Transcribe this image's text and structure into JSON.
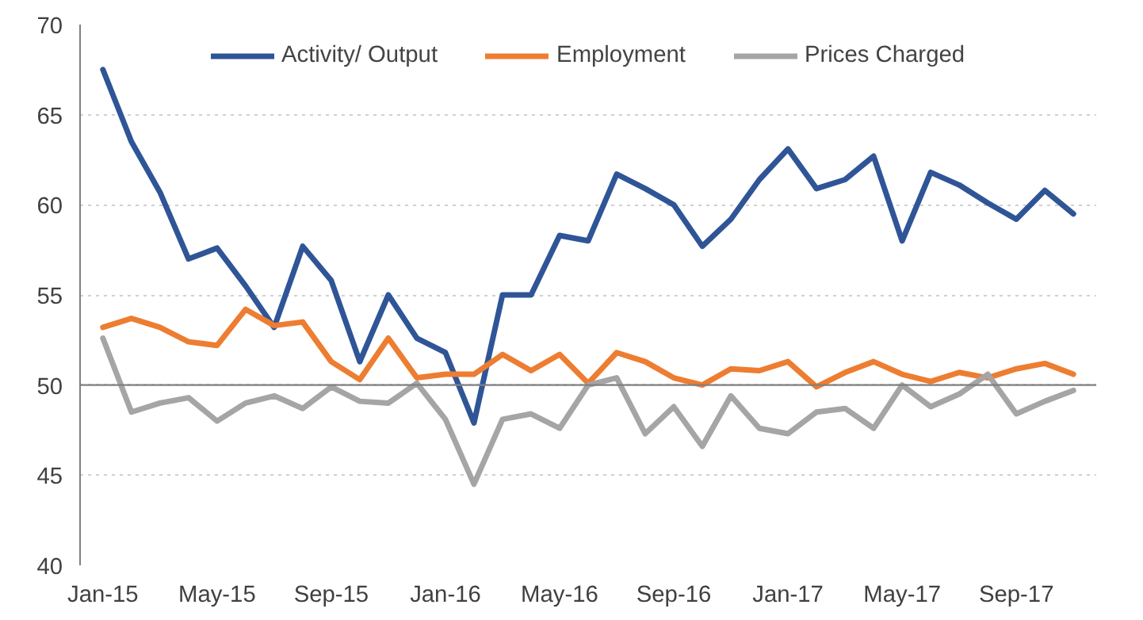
{
  "chart_data": {
    "type": "line",
    "categories": [
      "Jan-15",
      null,
      null,
      null,
      "May-15",
      null,
      null,
      null,
      "Sep-15",
      null,
      null,
      null,
      "Jan-16",
      null,
      null,
      null,
      "May-16",
      null,
      null,
      null,
      "Sep-16",
      null,
      null,
      null,
      "Jan-17",
      null,
      null,
      null,
      "May-17",
      null,
      null,
      null,
      "Sep-17",
      null,
      null
    ],
    "series": [
      {
        "name": "Activity/ Output",
        "color": "#2f5597",
        "values": [
          67.5,
          63.5,
          60.7,
          57.0,
          57.6,
          55.5,
          53.2,
          57.7,
          55.8,
          51.3,
          55.0,
          52.6,
          51.8,
          47.9,
          55.0,
          55.0,
          58.3,
          58.0,
          61.7,
          60.9,
          60.0,
          57.7,
          59.2,
          61.4,
          63.1,
          60.9,
          61.4,
          62.7,
          58.0,
          61.8,
          61.1,
          60.1,
          59.2,
          60.8,
          59.5
        ]
      },
      {
        "name": "Employment",
        "color": "#ed7d31",
        "values": [
          53.2,
          53.7,
          53.2,
          52.4,
          52.2,
          54.2,
          53.3,
          53.5,
          51.3,
          50.3,
          52.6,
          50.4,
          50.6,
          50.6,
          51.7,
          50.8,
          51.7,
          50.1,
          51.8,
          51.3,
          50.4,
          50.0,
          50.9,
          50.8,
          51.3,
          49.9,
          50.7,
          51.3,
          50.6,
          50.2,
          50.7,
          50.4,
          50.9,
          51.2,
          50.6
        ]
      },
      {
        "name": "Prices Charged",
        "color": "#a5a5a5",
        "values": [
          52.6,
          48.5,
          49.0,
          49.3,
          48.0,
          49.0,
          49.4,
          48.7,
          49.9,
          49.1,
          49.0,
          50.1,
          48.1,
          44.5,
          48.1,
          48.4,
          47.6,
          50.0,
          50.4,
          47.3,
          48.8,
          46.6,
          49.4,
          47.6,
          47.3,
          48.5,
          48.7,
          47.6,
          50.0,
          48.8,
          49.5,
          50.6,
          48.4,
          49.1,
          49.7
        ]
      }
    ],
    "ylim": [
      40,
      70
    ],
    "yticks": [
      40,
      45,
      50,
      55,
      60,
      65,
      70
    ],
    "ref_lines": [
      {
        "axis": "y",
        "value": 50,
        "color": "#808080"
      }
    ],
    "grid": "y",
    "legend": "top",
    "line_style": "solid"
  }
}
